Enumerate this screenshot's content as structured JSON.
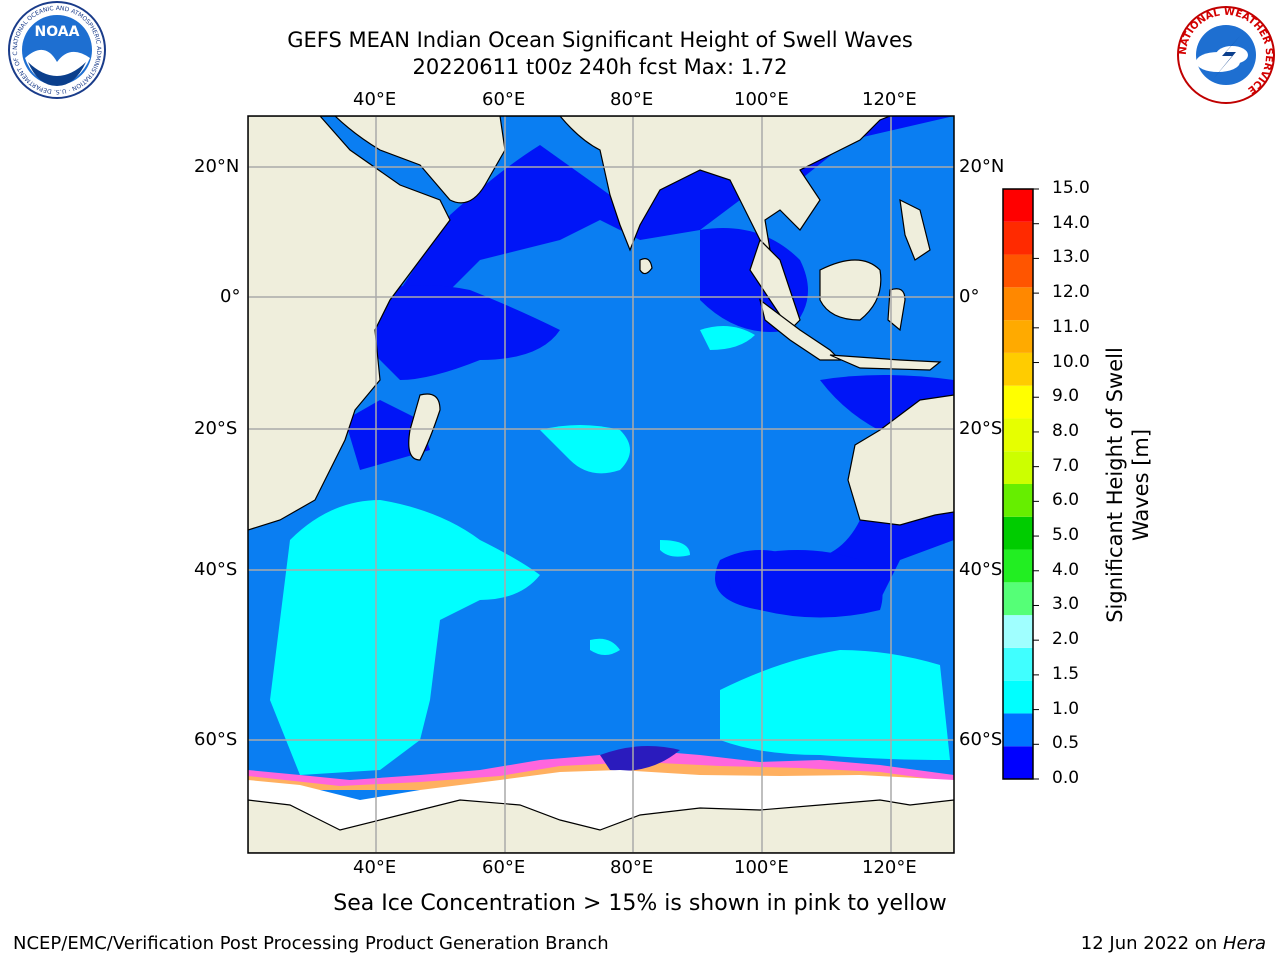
{
  "title": {
    "line1": "GEFS MEAN Indian Ocean Significant Height of Swell Waves",
    "line2": "20220611 t00z 240h fcst   Max: 1.72"
  },
  "map": {
    "lon_labels": [
      "40°E",
      "60°E",
      "80°E",
      "100°E",
      "120°E"
    ],
    "lat_labels": [
      "20°N",
      "0°",
      "20°S",
      "40°S",
      "60°S"
    ],
    "lon_range": [
      20,
      130
    ],
    "lat_range": [
      -70,
      28
    ],
    "colors": {
      "land": "#efeedc",
      "ice": "#ffffff",
      "ocean_low": "#0015f7",
      "ocean_mid": "#0a7ef2",
      "ocean_high": "#00ffff",
      "grid": "#aaaaaa"
    }
  },
  "colorbar": {
    "title_line1": "Significant Height of Swell",
    "title_line2": "Waves [m]",
    "ticks": [
      "0.0",
      "0.5",
      "1.0",
      "1.5",
      "2.0",
      "3.0",
      "4.0",
      "5.0",
      "6.0",
      "7.0",
      "8.0",
      "9.0",
      "10.0",
      "11.0",
      "12.0",
      "13.0",
      "14.0",
      "15.0"
    ],
    "colors": [
      "#0000ff",
      "#0073ff",
      "#00ffff",
      "#40ffff",
      "#a0ffff",
      "#55ff77",
      "#22ee22",
      "#00cc00",
      "#66ee00",
      "#ccff00",
      "#e6ff00",
      "#ffff00",
      "#ffcc00",
      "#ffaa00",
      "#ff8800",
      "#ff5500",
      "#ff2a00",
      "#ff0000"
    ]
  },
  "note": "Sea Ice Concentration > 15% is shown in pink to yellow",
  "footer": {
    "left": "NCEP/EMC/Verification Post Processing Product Generation Branch",
    "date": "12 Jun 2022 on ",
    "host": "Hera"
  },
  "logos": {
    "noaa_text": "NOAA",
    "noaa_ring": "NATIONAL OCEANIC AND ATMOSPHERIC ADMINISTRATION · U.S. DEPARTMENT OF COMMERCE",
    "nws_ring": "NATIONAL WEATHER SERVICE"
  }
}
